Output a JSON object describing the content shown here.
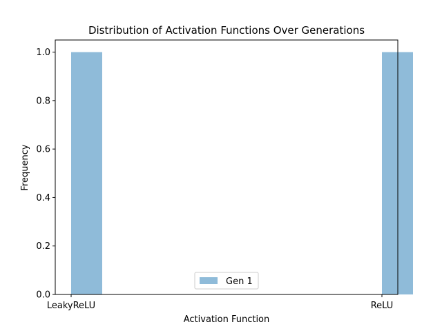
{
  "chart_data": {
    "type": "bar",
    "title": "Distribution of Activation Functions Over Generations",
    "xlabel": "Activation Function",
    "ylabel": "Frequency",
    "categories": [
      "LeakyReLU",
      "ReLU"
    ],
    "series": [
      {
        "name": "Gen 1",
        "values": [
          1.0,
          1.0
        ],
        "color": "#1f77b4",
        "opacity": 0.5
      }
    ],
    "ylim": [
      0,
      1.05
    ],
    "yticks": [
      "0.0",
      "0.2",
      "0.4",
      "0.6",
      "0.8",
      "1.0"
    ],
    "grid": false,
    "legend": "lower-center"
  }
}
